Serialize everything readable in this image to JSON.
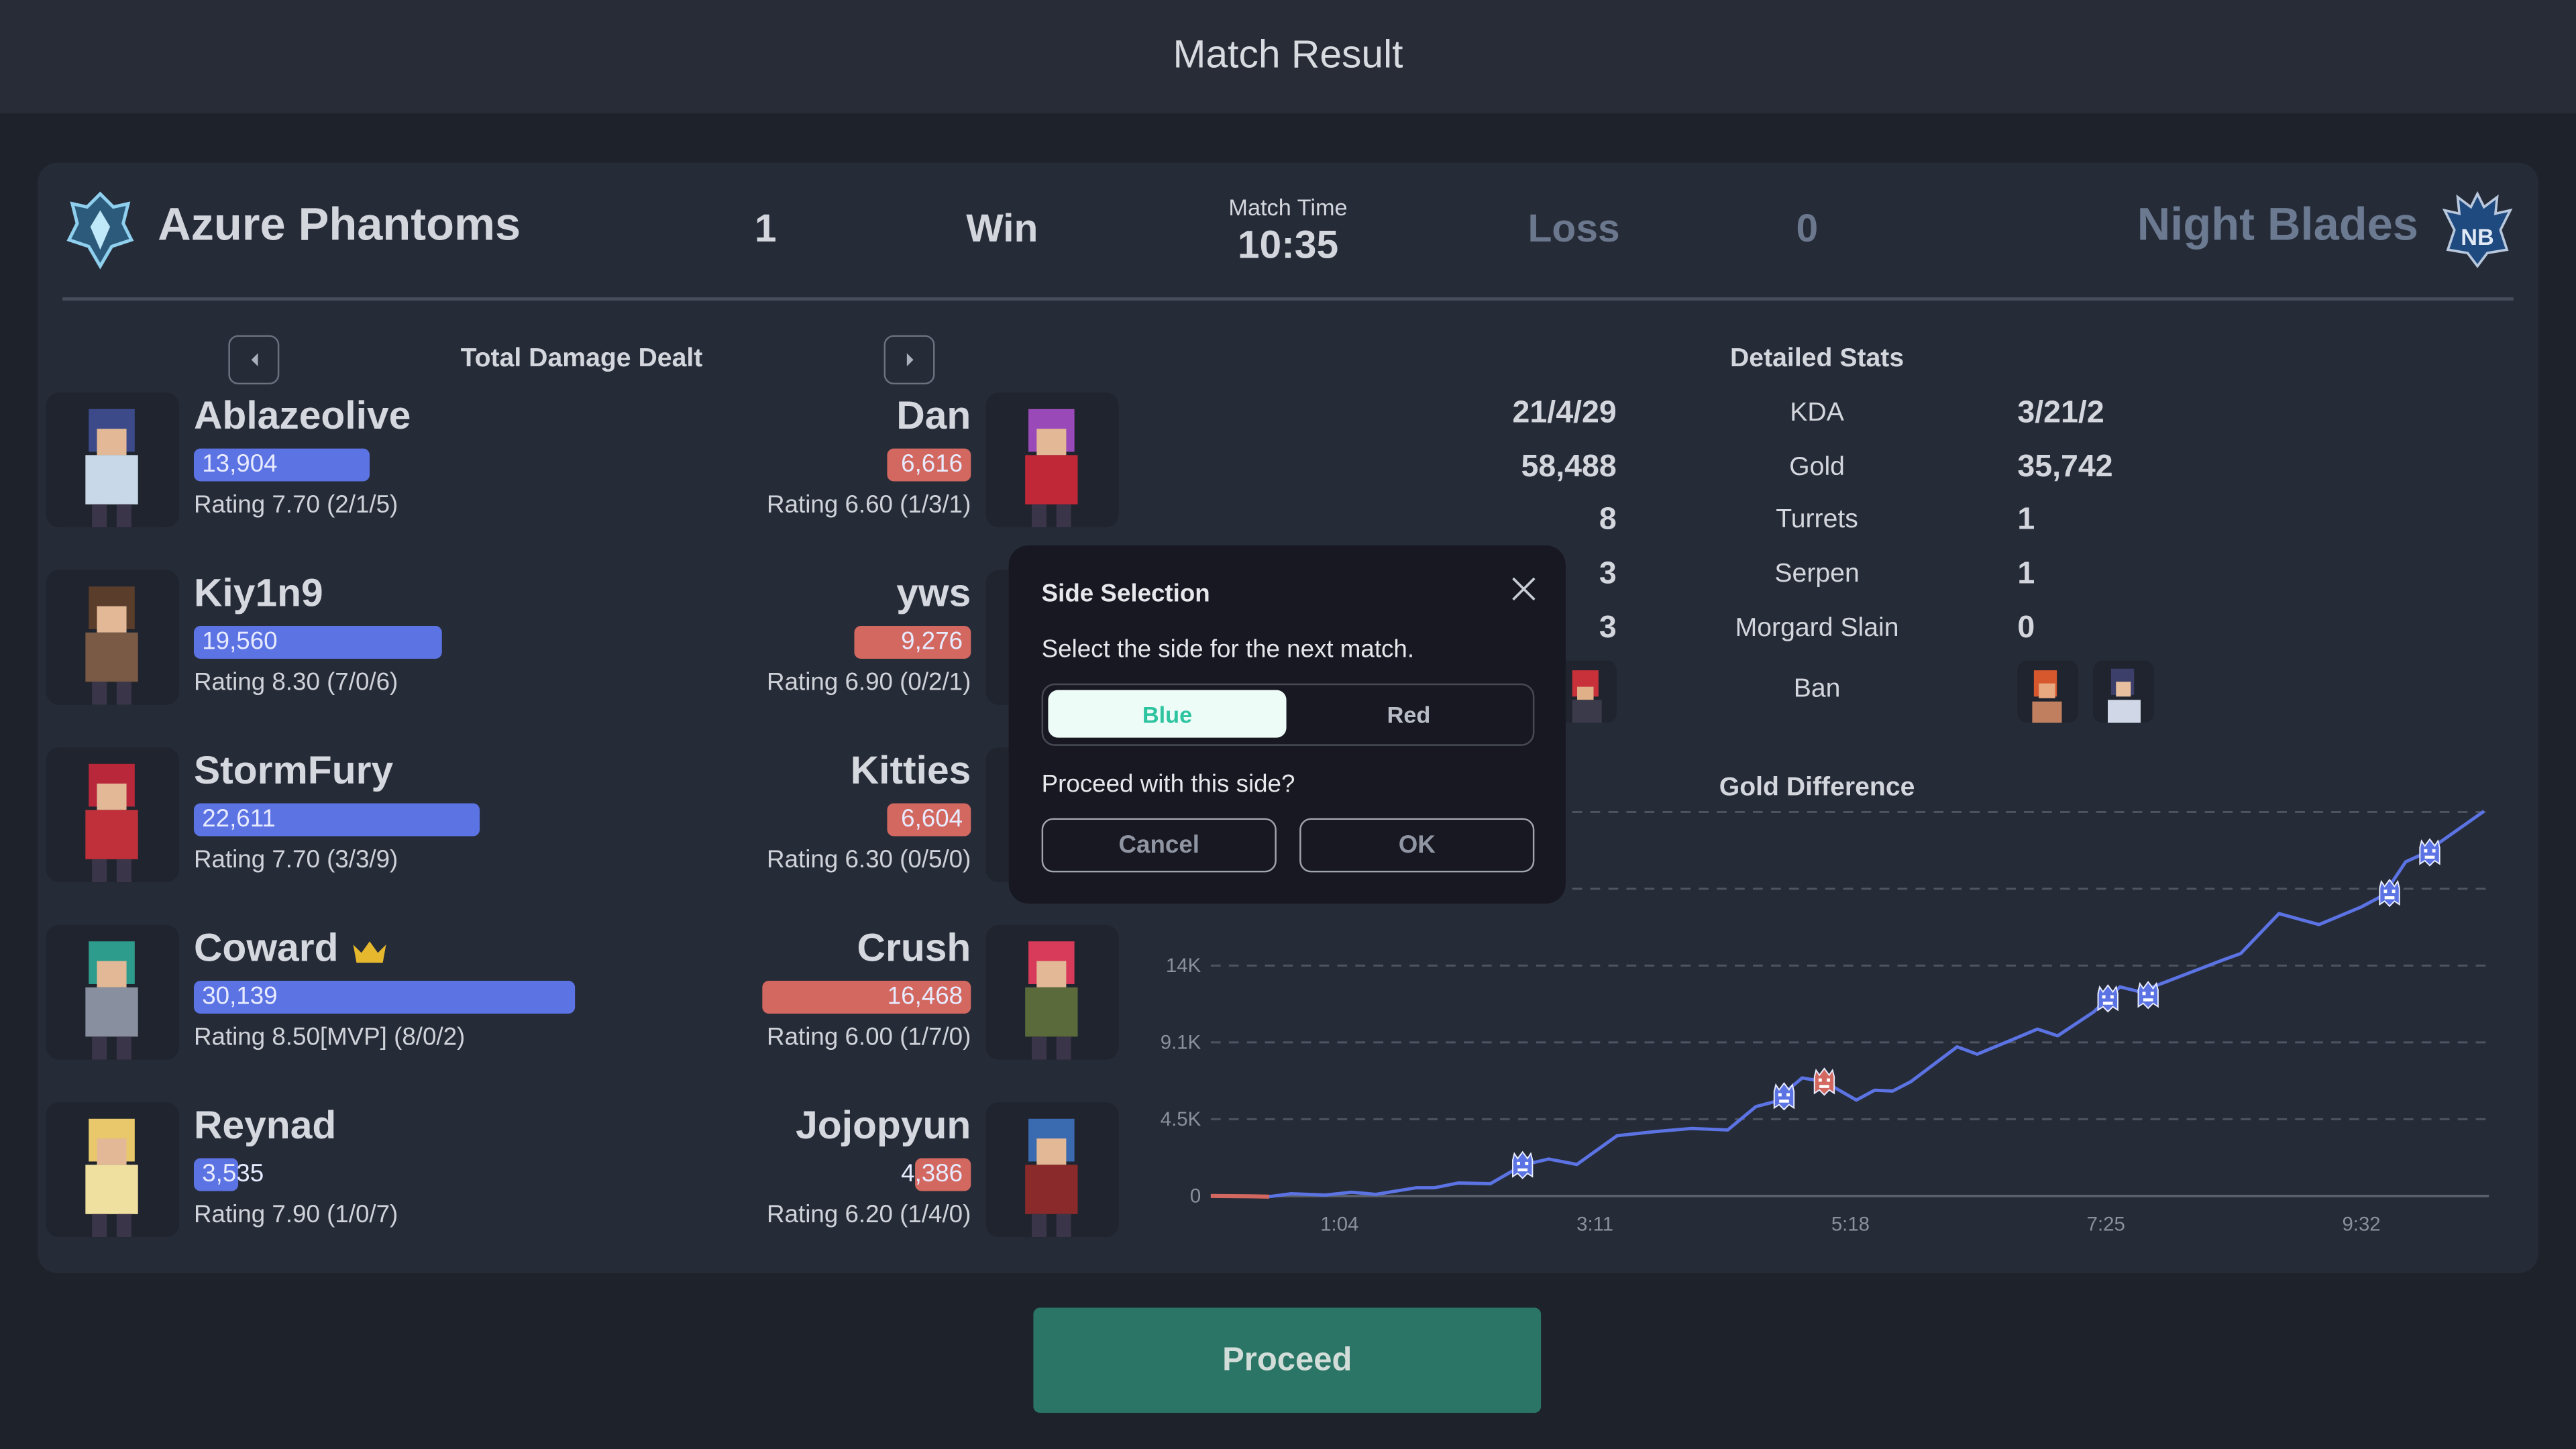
{
  "window_title": "Match Result",
  "header": {
    "left_team": "Azure Phantoms",
    "left_score": "1",
    "left_result": "Win",
    "match_time_label": "Match Time",
    "match_time": "10:35",
    "right_result": "Loss",
    "right_score": "0",
    "right_team": "Night Blades",
    "left_logo_icon": "phantom-crest-icon",
    "right_logo_icon": "nb-crest-icon"
  },
  "damage": {
    "title": "Total Damage Dealt",
    "prev_icon": "chevron-left-icon",
    "next_icon": "chevron-right-icon",
    "max_value": 30139,
    "left_color": "#5b73e3",
    "right_color": "#d2685f",
    "left_players": [
      {
        "name": "Ablazeolive",
        "damage": "13,904",
        "value": 13904,
        "rating": "Rating 7.70 (2/1/5)",
        "hair": "#3c4a8a",
        "outfit": "#c8d8e8"
      },
      {
        "name": "Kiy1n9",
        "damage": "19,560",
        "value": 19560,
        "rating": "Rating 8.30 (7/0/6)",
        "hair": "#5a3d2b",
        "outfit": "#7a5a44"
      },
      {
        "name": "StormFury",
        "damage": "22,611",
        "value": 22611,
        "rating": "Rating 7.70 (3/3/9)",
        "hair": "#b8283a",
        "outfit": "#c0303a"
      },
      {
        "name": "Coward",
        "damage": "30,139",
        "value": 30139,
        "rating": "Rating 8.50[MVP] (8/0/2)",
        "mvp": true,
        "hair": "#2e9c8c",
        "outfit": "#8890a0"
      },
      {
        "name": "Reynad",
        "damage": "3,535",
        "value": 3535,
        "rating": "Rating 7.90 (1/0/7)",
        "hair": "#e8c86a",
        "outfit": "#f0e0a0"
      }
    ],
    "right_players": [
      {
        "name": "Dan",
        "damage": "6,616",
        "value": 6616,
        "rating": "Rating 6.60 (1/3/1)",
        "hair": "#9a4ab8",
        "outfit": "#c02838"
      },
      {
        "name": "yws",
        "damage": "9,276",
        "value": 9276,
        "rating": "Rating 6.90 (0/2/1)",
        "hair": "#6a5040",
        "outfit": "#a08060"
      },
      {
        "name": "Kitties",
        "damage": "6,604",
        "value": 6604,
        "rating": "Rating 6.30 (0/5/0)",
        "hair": "#c03040",
        "outfit": "#a02030"
      },
      {
        "name": "Crush",
        "damage": "16,468",
        "value": 16468,
        "rating": "Rating 6.00 (1/7/0)",
        "hair": "#d83a5a",
        "outfit": "#5a6a3a"
      },
      {
        "name": "Jojopyun",
        "damage": "4,386",
        "value": 4386,
        "rating": "Rating 6.20 (1/4/0)",
        "hair": "#3a6ab0",
        "outfit": "#8a2a2a"
      }
    ]
  },
  "detailed_stats": {
    "title": "Detailed Stats",
    "rows": [
      {
        "left": "21/4/29",
        "label": "KDA",
        "right": "3/21/2"
      },
      {
        "left": "58,488",
        "label": "Gold",
        "right": "35,742"
      },
      {
        "left": "8",
        "label": "Turrets",
        "right": "1"
      },
      {
        "left": "3",
        "label": "Serpen",
        "right": "1"
      },
      {
        "left": "3",
        "label": "Morgard Slain",
        "right": "0"
      }
    ],
    "ban_label": "Ban"
  },
  "chart_data": {
    "type": "line",
    "title": "Gold Difference",
    "x_ticks": [
      "1:04",
      "3:11",
      "5:18",
      "7:25",
      "9:32"
    ],
    "y_ticks": [
      "0",
      "4.5K",
      "9.1K",
      "14K"
    ],
    "ylim": [
      0,
      22746
    ],
    "xlim": [
      "0:00",
      "10:35"
    ],
    "grid": "horizontal dashed",
    "line_color": "#5b73e3",
    "negative_color": "#d2685f",
    "points": [
      [
        "0:00",
        0
      ],
      [
        "0:20",
        -20
      ],
      [
        "0:29",
        -40
      ],
      [
        "0:40",
        140
      ],
      [
        "0:57",
        60
      ],
      [
        "1:10",
        220
      ],
      [
        "1:22",
        100
      ],
      [
        "1:42",
        490
      ],
      [
        "1:51",
        490
      ],
      [
        "2:03",
        770
      ],
      [
        "2:19",
        730
      ],
      [
        "2:35",
        1830
      ],
      [
        "2:48",
        2190
      ],
      [
        "3:02",
        1870
      ],
      [
        "3:22",
        3570
      ],
      [
        "3:41",
        3810
      ],
      [
        "3:59",
        4000
      ],
      [
        "4:17",
        3910
      ],
      [
        "4:31",
        5290
      ],
      [
        "4:40",
        5580
      ],
      [
        "4:54",
        7000
      ],
      [
        "5:05",
        6770
      ],
      [
        "5:21",
        5680
      ],
      [
        "5:30",
        6270
      ],
      [
        "5:39",
        6220
      ],
      [
        "5:48",
        6770
      ],
      [
        "6:11",
        8840
      ],
      [
        "6:21",
        8400
      ],
      [
        "6:38",
        9230
      ],
      [
        "6:51",
        9890
      ],
      [
        "7:01",
        9490
      ],
      [
        "7:19",
        10910
      ],
      [
        "7:32",
        12390
      ],
      [
        "7:42",
        12100
      ],
      [
        "8:10",
        13380
      ],
      [
        "8:23",
        13970
      ],
      [
        "8:32",
        14360
      ],
      [
        "8:51",
        16730
      ],
      [
        "9:11",
        16080
      ],
      [
        "9:32",
        17130
      ],
      [
        "9:43",
        17820
      ],
      [
        "9:54",
        19790
      ],
      [
        "10:03",
        20280
      ],
      [
        "10:33",
        22790
      ]
    ],
    "events": [
      {
        "time": "2:35",
        "value": 1830,
        "side": "blue"
      },
      {
        "time": "4:45",
        "value": 5900,
        "side": "blue"
      },
      {
        "time": "5:05",
        "value": 6770,
        "side": "red"
      },
      {
        "time": "7:26",
        "value": 11700,
        "side": "blue"
      },
      {
        "time": "7:46",
        "value": 11900,
        "side": "blue"
      },
      {
        "time": "9:46",
        "value": 17950,
        "side": "blue"
      },
      {
        "time": "10:06",
        "value": 20350,
        "side": "blue"
      }
    ]
  },
  "modal": {
    "title": "Side Selection",
    "close_icon": "close-icon",
    "message": "Select the side for the next match.",
    "options": [
      "Blue",
      "Red"
    ],
    "selected": "Blue",
    "question": "Proceed with this side?",
    "cancel_label": "Cancel",
    "ok_label": "OK",
    "selected_bg": "#eefcf8",
    "selected_text": "#2ec4a0"
  },
  "footer": {
    "proceed_label": "Proceed"
  }
}
